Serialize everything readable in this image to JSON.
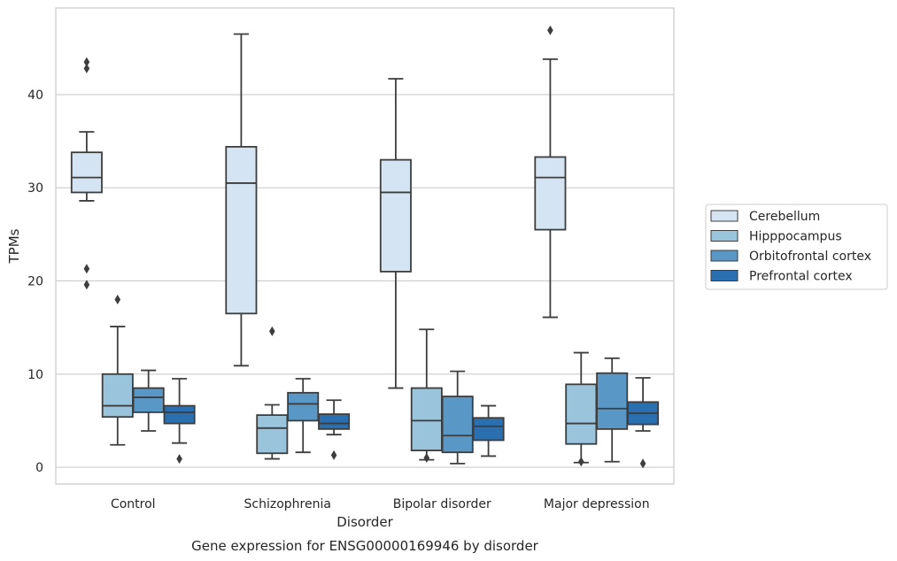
{
  "chart_data": {
    "type": "box",
    "categories": [
      "Control",
      "Schizophrenia",
      "Bipolar disorder",
      "Major depression"
    ],
    "xlabel": "Disorder",
    "ylabel": "TPMs",
    "caption": "Gene expression for ENSG00000169946 by disorder",
    "ylim": [
      -1.8,
      49.3
    ],
    "yticks": [
      "0",
      "10",
      "20",
      "30",
      "40"
    ],
    "grid": "horizontal",
    "legend_position": "right",
    "series": [
      {
        "name": "Cerebellum",
        "color": "#d4e4f2",
        "boxes": [
          {
            "whislo": 28.6,
            "q1": 29.5,
            "med": 31.1,
            "q3": 33.8,
            "whishi": 36.0,
            "fliers": [
              43.5,
              42.8,
              21.3,
              19.6
            ]
          },
          {
            "whislo": 10.9,
            "q1": 16.5,
            "med": 30.5,
            "q3": 34.4,
            "whishi": 46.5,
            "fliers": []
          },
          {
            "whislo": 8.5,
            "q1": 21.0,
            "med": 29.5,
            "q3": 33.0,
            "whishi": 41.7,
            "fliers": []
          },
          {
            "whislo": 16.1,
            "q1": 25.5,
            "med": 31.1,
            "q3": 33.3,
            "whishi": 43.8,
            "fliers": [
              46.9
            ]
          }
        ]
      },
      {
        "name": "Hipppocampus",
        "color": "#9ac3dc",
        "boxes": [
          {
            "whislo": 2.4,
            "q1": 5.4,
            "med": 6.6,
            "q3": 10.0,
            "whishi": 15.1,
            "fliers": [
              18.0
            ]
          },
          {
            "whislo": 0.9,
            "q1": 1.5,
            "med": 4.2,
            "q3": 5.6,
            "whishi": 6.7,
            "fliers": [
              14.6
            ]
          },
          {
            "whislo": 0.8,
            "q1": 1.8,
            "med": 5.0,
            "q3": 8.5,
            "whishi": 14.8,
            "fliers": [
              1.0
            ]
          },
          {
            "whislo": 0.5,
            "q1": 2.5,
            "med": 4.7,
            "q3": 8.9,
            "whishi": 12.3,
            "fliers": [
              0.6
            ]
          }
        ]
      },
      {
        "name": "Orbitofrontal cortex",
        "color": "#5897c6",
        "boxes": [
          {
            "whislo": 3.9,
            "q1": 5.9,
            "med": 7.5,
            "q3": 8.5,
            "whishi": 10.4,
            "fliers": []
          },
          {
            "whislo": 1.6,
            "q1": 5.0,
            "med": 6.8,
            "q3": 8.0,
            "whishi": 9.5,
            "fliers": []
          },
          {
            "whislo": 0.4,
            "q1": 1.6,
            "med": 3.4,
            "q3": 7.6,
            "whishi": 10.3,
            "fliers": []
          },
          {
            "whislo": 0.6,
            "q1": 4.1,
            "med": 6.3,
            "q3": 10.1,
            "whishi": 11.7,
            "fliers": []
          }
        ]
      },
      {
        "name": "Prefrontal cortex",
        "color": "#2a6fb0",
        "boxes": [
          {
            "whislo": 2.6,
            "q1": 4.7,
            "med": 5.9,
            "q3": 6.6,
            "whishi": 9.5,
            "fliers": [
              0.9
            ]
          },
          {
            "whislo": 3.5,
            "q1": 4.1,
            "med": 4.7,
            "q3": 5.7,
            "whishi": 7.2,
            "fliers": [
              1.3
            ]
          },
          {
            "whislo": 1.2,
            "q1": 2.9,
            "med": 4.4,
            "q3": 5.3,
            "whishi": 6.6,
            "fliers": []
          },
          {
            "whislo": 3.9,
            "q1": 4.6,
            "med": 5.8,
            "q3": 7.0,
            "whishi": 9.6,
            "fliers": [
              0.4
            ]
          }
        ]
      }
    ]
  }
}
